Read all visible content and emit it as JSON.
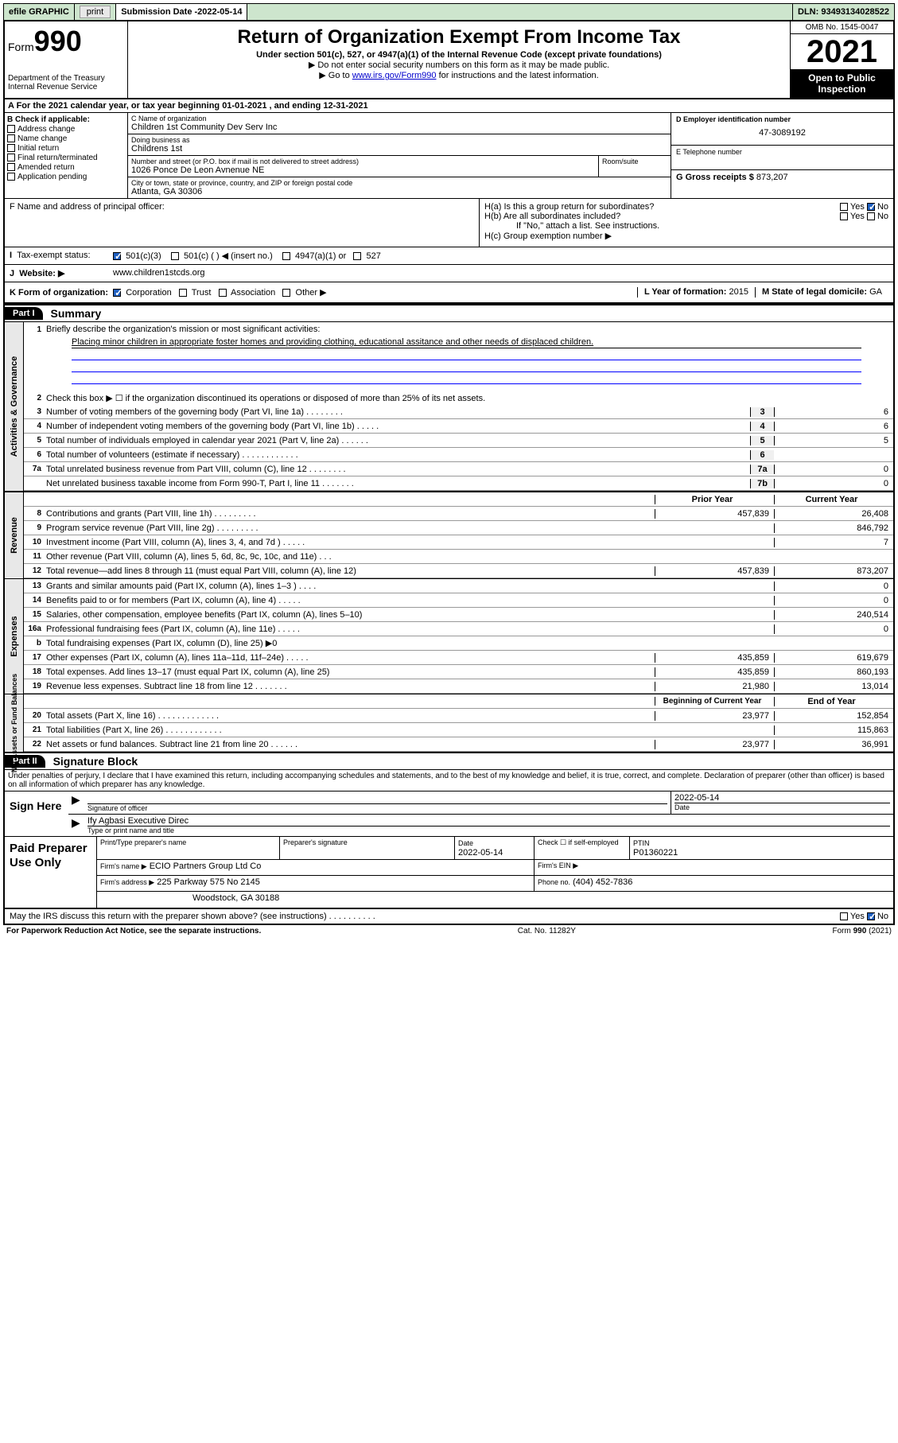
{
  "topbar": {
    "efile": "efile GRAPHIC",
    "print": "print",
    "subdate_label": "Submission Date - ",
    "subdate": "2022-05-14",
    "dln": "DLN: 93493134028522"
  },
  "header": {
    "form_prefix": "Form",
    "form_num": "990",
    "dept": "Department of the Treasury",
    "irs": "Internal Revenue Service",
    "title": "Return of Organization Exempt From Income Tax",
    "sub": "Under section 501(c), 527, or 4947(a)(1) of the Internal Revenue Code (except private foundations)",
    "note1": "▶ Do not enter social security numbers on this form as it may be made public.",
    "note2_pre": "▶ Go to ",
    "note2_link": "www.irs.gov/Form990",
    "note2_post": " for instructions and the latest information.",
    "omb": "OMB No. 1545-0047",
    "year": "2021",
    "openpub": "Open to Public Inspection"
  },
  "row_a": "A For the 2021 calendar year, or tax year beginning 01-01-2021    , and ending 12-31-2021",
  "section_b": {
    "label": "B Check if applicable:",
    "items": [
      "Address change",
      "Name change",
      "Initial return",
      "Final return/terminated",
      "Amended return",
      "Application pending"
    ]
  },
  "section_c": {
    "name_label": "C Name of organization",
    "name": "Children 1st Community Dev Serv Inc",
    "dba_label": "Doing business as",
    "dba": "Childrens 1st",
    "street_label": "Number and street (or P.O. box if mail is not delivered to street address)",
    "room_label": "Room/suite",
    "street": "1026 Ponce De Leon Avnenue NE",
    "city_label": "City or town, state or province, country, and ZIP or foreign postal code",
    "city": "Atlanta, GA   30306"
  },
  "section_d": {
    "label": "D Employer identification number",
    "value": "47-3089192"
  },
  "section_e": {
    "label": "E Telephone number",
    "value": ""
  },
  "section_g": {
    "label": "G Gross receipts $",
    "value": "873,207"
  },
  "section_f": {
    "label": "F  Name and address of principal officer:"
  },
  "section_h": {
    "ha": "H(a)  Is this a group return for subordinates?",
    "hb": "H(b)  Are all subordinates included?",
    "hb_note": "If \"No,\" attach a list. See instructions.",
    "hc": "H(c)  Group exemption number ▶",
    "yes": "Yes",
    "no": "No"
  },
  "section_i": {
    "label": "Tax-exempt status:",
    "opts": [
      "501(c)(3)",
      "501(c) (   ) ◀ (insert no.)",
      "4947(a)(1) or",
      "527"
    ]
  },
  "section_j": {
    "label": "Website: ▶",
    "value": "www.children1stcds.org"
  },
  "section_k": {
    "label": "K Form of organization:",
    "opts": [
      "Corporation",
      "Trust",
      "Association",
      "Other ▶"
    ],
    "l_label": "L Year of formation:",
    "l_val": "2015",
    "m_label": "M State of legal domicile:",
    "m_val": "GA"
  },
  "part1": {
    "hdr": "Part I",
    "title": "Summary"
  },
  "activities": {
    "sidebar": "Activities & Governance",
    "l1_label": "Briefly describe the organization's mission or most significant activities:",
    "l1_text": "Placing minor children in appropriate foster homes and providing clothing, educational assitance and other needs of displaced children.",
    "l2": "Check this box ▶ ☐  if the organization discontinued its operations or disposed of more than 25% of its net assets.",
    "lines": [
      {
        "n": "3",
        "t": "Number of voting members of the governing body (Part VI, line 1a)   .   .   .   .   .   .   .   .",
        "b": "3",
        "v": "6"
      },
      {
        "n": "4",
        "t": "Number of independent voting members of the governing body (Part VI, line 1b)   .   .   .   .   .",
        "b": "4",
        "v": "6"
      },
      {
        "n": "5",
        "t": "Total number of individuals employed in calendar year 2021 (Part V, line 2a)   .   .   .   .   .   .",
        "b": "5",
        "v": "5"
      },
      {
        "n": "6",
        "t": "Total number of volunteers (estimate if necessary)   .   .   .   .   .   .   .   .   .   .   .   .",
        "b": "6",
        "v": ""
      },
      {
        "n": "7a",
        "t": "Total unrelated business revenue from Part VIII, column (C), line 12   .   .   .   .   .   .   .   .",
        "b": "7a",
        "v": "0"
      },
      {
        "n": "",
        "t": "Net unrelated business taxable income from Form 990-T, Part I, line 11   .   .   .   .   .   .   .",
        "b": "7b",
        "v": "0"
      }
    ]
  },
  "revenue": {
    "sidebar": "Revenue",
    "hdr_prior": "Prior Year",
    "hdr_curr": "Current Year",
    "lines": [
      {
        "n": "8",
        "t": "Contributions and grants (Part VIII, line 1h)   .   .   .   .   .   .   .   .   .",
        "p": "457,839",
        "c": "26,408"
      },
      {
        "n": "9",
        "t": "Program service revenue (Part VIII, line 2g)   .   .   .   .   .   .   .   .   .",
        "p": "",
        "c": "846,792"
      },
      {
        "n": "10",
        "t": "Investment income (Part VIII, column (A), lines 3, 4, and 7d )   .   .   .   .   .",
        "p": "",
        "c": "7"
      },
      {
        "n": "11",
        "t": "Other revenue (Part VIII, column (A), lines 5, 6d, 8c, 9c, 10c, and 11e)   .   .   .",
        "p": "",
        "c": ""
      },
      {
        "n": "12",
        "t": "Total revenue—add lines 8 through 11 (must equal Part VIII, column (A), line 12)",
        "p": "457,839",
        "c": "873,207"
      }
    ]
  },
  "expenses": {
    "sidebar": "Expenses",
    "lines": [
      {
        "n": "13",
        "t": "Grants and similar amounts paid (Part IX, column (A), lines 1–3 )   .   .   .   .",
        "p": "",
        "c": "0"
      },
      {
        "n": "14",
        "t": "Benefits paid to or for members (Part IX, column (A), line 4)   .   .   .   .   .",
        "p": "",
        "c": "0"
      },
      {
        "n": "15",
        "t": "Salaries, other compensation, employee benefits (Part IX, column (A), lines 5–10)",
        "p": "",
        "c": "240,514"
      },
      {
        "n": "16a",
        "t": "Professional fundraising fees (Part IX, column (A), line 11e)   .   .   .   .   .",
        "p": "",
        "c": "0"
      },
      {
        "n": "b",
        "t": "Total fundraising expenses (Part IX, column (D), line 25) ▶0",
        "p": "shade",
        "c": "shade"
      },
      {
        "n": "17",
        "t": "Other expenses (Part IX, column (A), lines 11a–11d, 11f–24e)   .   .   .   .   .",
        "p": "435,859",
        "c": "619,679"
      },
      {
        "n": "18",
        "t": "Total expenses. Add lines 13–17 (must equal Part IX, column (A), line 25)",
        "p": "435,859",
        "c": "860,193"
      },
      {
        "n": "19",
        "t": "Revenue less expenses. Subtract line 18 from line 12   .   .   .   .   .   .   .",
        "p": "21,980",
        "c": "13,014"
      }
    ]
  },
  "netassets": {
    "sidebar": "Net Assets or Fund Balances",
    "hdr_beg": "Beginning of Current Year",
    "hdr_end": "End of Year",
    "lines": [
      {
        "n": "20",
        "t": "Total assets (Part X, line 16)   .   .   .   .   .   .   .   .   .   .   .   .   .",
        "p": "23,977",
        "c": "152,854"
      },
      {
        "n": "21",
        "t": "Total liabilities (Part X, line 26)   .   .   .   .   .   .   .   .   .   .   .   .",
        "p": "",
        "c": "115,863"
      },
      {
        "n": "22",
        "t": "Net assets or fund balances. Subtract line 21 from line 20   .   .   .   .   .   .",
        "p": "23,977",
        "c": "36,991"
      }
    ]
  },
  "part2": {
    "hdr": "Part II",
    "title": "Signature Block"
  },
  "decl": "Under penalties of perjury, I declare that I have examined this return, including accompanying schedules and statements, and to the best of my knowledge and belief, it is true, correct, and complete. Declaration of preparer (other than officer) is based on all information of which preparer has any knowledge.",
  "sign": {
    "label": "Sign Here",
    "sig_label": "Signature of officer",
    "date": "2022-05-14",
    "date_label": "Date",
    "name": "Ify Agbasi  Executive Direc",
    "name_label": "Type or print name and title"
  },
  "prep": {
    "label": "Paid Preparer Use Only",
    "h1": "Print/Type preparer's name",
    "h2": "Preparer's signature",
    "h3": "Date",
    "h3v": "2022-05-14",
    "h4": "Check ☐ if self-employed",
    "h5": "PTIN",
    "h5v": "P01360221",
    "firm_label": "Firm's name     ▶",
    "firm": "ECIO Partners Group Ltd Co",
    "ein_label": "Firm's EIN ▶",
    "addr_label": "Firm's address ▶",
    "addr": "225 Parkway 575 No 2145",
    "addr2": "Woodstock, GA  30188",
    "phone_label": "Phone no.",
    "phone": "(404) 452-7836"
  },
  "may_discuss": "May the IRS discuss this return with the preparer shown above? (see instructions)   .   .   .   .   .   .   .   .   .   .",
  "footer": {
    "left": "For Paperwork Reduction Act Notice, see the separate instructions.",
    "mid": "Cat. No. 11282Y",
    "right": "Form 990 (2021)"
  }
}
